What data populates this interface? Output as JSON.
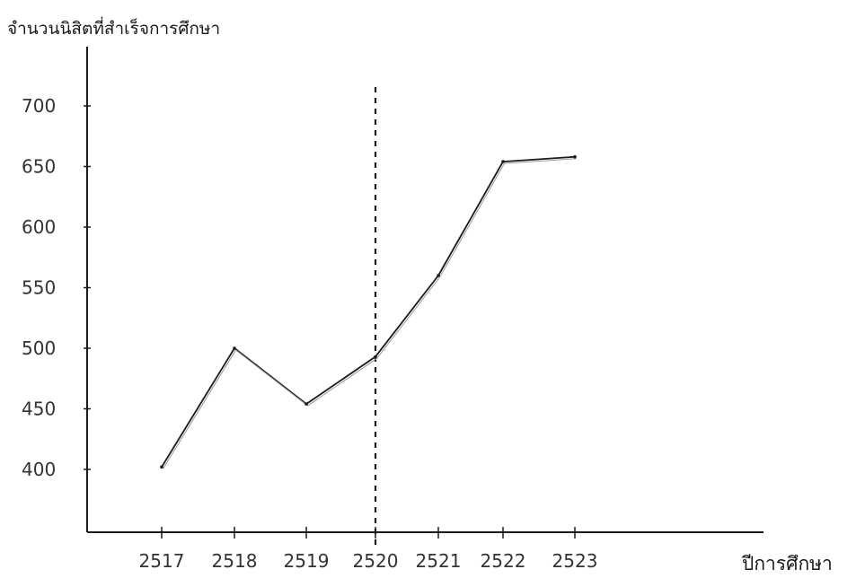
{
  "chart_data": {
    "type": "line",
    "title": "",
    "ylabel": "จำนวนนิสิตที่สำเร็จการศึกษา",
    "xlabel": "ปีการศึกษา",
    "categories": [
      "2517",
      "2518",
      "2519",
      "2520",
      "2521",
      "2522",
      "2523"
    ],
    "series": [
      {
        "values": [
          402,
          500,
          454,
          493,
          560,
          654,
          658
        ]
      }
    ],
    "y_ticks": [
      400,
      450,
      500,
      550,
      600,
      650,
      700
    ],
    "y_tick_labels": [
      "400",
      "450",
      "500",
      "550",
      "600",
      "650",
      "700"
    ],
    "ylim": [
      350,
      725
    ],
    "vertical_reference": {
      "category": "2520",
      "style": "dashed"
    },
    "grid": false,
    "legend": "none",
    "colors": {
      "line": "#1a1a1a",
      "axis": "#1a1a1a",
      "text": "#1a1a1a"
    }
  }
}
